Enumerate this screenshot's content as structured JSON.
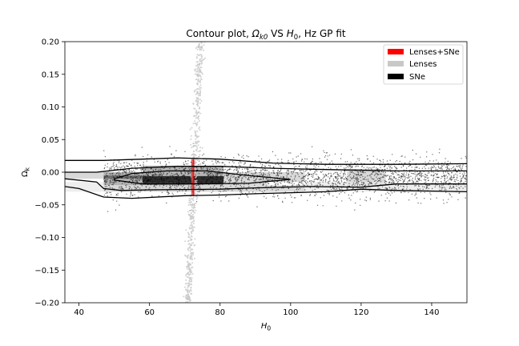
{
  "chart_data": {
    "type": "scatter",
    "title": {
      "pre": "Contour plot, ",
      "omega": "Ω",
      "omega_sub": "k0",
      "mid": " VS ",
      "h": "H",
      "h_sub": "0",
      "post": ", Hz GP fit"
    },
    "xlabel": {
      "main": "H",
      "sub": "0"
    },
    "ylabel": {
      "main": "Ω",
      "sub": "k"
    },
    "xlim": [
      36,
      150
    ],
    "ylim": [
      -0.2,
      0.2
    ],
    "xticks": [
      40,
      60,
      80,
      100,
      120,
      140
    ],
    "xtick_labels": [
      "40",
      "60",
      "80",
      "100",
      "120",
      "140"
    ],
    "yticks": [
      0.2,
      0.15,
      0.1,
      0.05,
      0.0,
      -0.05,
      -0.1,
      -0.15,
      -0.2
    ],
    "ytick_labels": [
      "0.20",
      "0.15",
      "0.10",
      "0.05",
      "0.00",
      "−0.05",
      "−0.10",
      "−0.15",
      "−0.20"
    ],
    "legend_position": "top-right",
    "series": [
      {
        "name": "Lenses+SNe",
        "color": "#ff0000"
      },
      {
        "name": "Lenses",
        "color": "#c8c8c8"
      },
      {
        "name": "SNe",
        "color": "#000000"
      }
    ],
    "sne_band": {
      "center": -0.008,
      "sigma": 0.015,
      "x_start": 47
    },
    "contours": {
      "outer": {
        "upper": [
          [
            36,
            0.018
          ],
          [
            47,
            0.018
          ],
          [
            58,
            0.02
          ],
          [
            68,
            0.022
          ],
          [
            80,
            0.02
          ],
          [
            95,
            0.014
          ],
          [
            110,
            0.012
          ],
          [
            130,
            0.012
          ],
          [
            150,
            0.013
          ]
        ],
        "lower": [
          [
            150,
            -0.03
          ],
          [
            130,
            -0.028
          ],
          [
            120,
            -0.026
          ],
          [
            110,
            -0.03
          ],
          [
            90,
            -0.033
          ],
          [
            80,
            -0.035
          ],
          [
            70,
            -0.036
          ],
          [
            55,
            -0.04
          ],
          [
            47,
            -0.038
          ],
          [
            40,
            -0.025
          ],
          [
            36,
            -0.022
          ]
        ]
      },
      "middle": {
        "upper": [
          [
            36,
            0.0
          ],
          [
            45,
            0.0
          ],
          [
            55,
            0.006
          ],
          [
            68,
            0.009
          ],
          [
            80,
            0.009
          ],
          [
            95,
            0.006
          ],
          [
            110,
            0.004
          ],
          [
            130,
            0.002
          ],
          [
            150,
            0.002
          ]
        ],
        "lower": [
          [
            150,
            -0.018
          ],
          [
            130,
            -0.018
          ],
          [
            120,
            -0.023
          ],
          [
            105,
            -0.022
          ],
          [
            90,
            -0.024
          ],
          [
            80,
            -0.026
          ],
          [
            60,
            -0.027
          ],
          [
            52,
            -0.028
          ],
          [
            47,
            -0.025
          ],
          [
            45,
            -0.015
          ],
          [
            36,
            -0.01
          ]
        ]
      },
      "inner": [
        [
          50,
          -0.01
        ],
        [
          55,
          -0.002
        ],
        [
          65,
          0.002
        ],
        [
          76,
          0.002
        ],
        [
          88,
          -0.005
        ],
        [
          100,
          -0.011
        ],
        [
          88,
          -0.017
        ],
        [
          70,
          -0.018
        ],
        [
          58,
          -0.018
        ],
        [
          50,
          -0.012
        ]
      ]
    },
    "shaded_cells": [
      {
        "x": [
          36,
          47
        ],
        "y": [
          -0.01,
          0.0
        ],
        "level": 2
      },
      {
        "x": [
          47,
          58
        ],
        "y": [
          -0.02,
          0.0
        ],
        "level": 3
      },
      {
        "x": [
          58,
          70
        ],
        "y": [
          -0.02,
          0.01
        ],
        "level": 3
      },
      {
        "x": [
          70,
          81
        ],
        "y": [
          -0.02,
          0.01
        ],
        "level": 3
      },
      {
        "x": [
          81,
          93
        ],
        "y": [
          -0.02,
          0.0
        ],
        "level": 2
      },
      {
        "x": [
          93,
          104
        ],
        "y": [
          -0.015,
          0.0
        ],
        "level": 2
      },
      {
        "x": [
          116,
          127
        ],
        "y": [
          -0.02,
          0.005
        ],
        "level": 2
      },
      {
        "x": [
          104,
          150
        ],
        "y": [
          -0.03,
          -0.015
        ],
        "level": 1
      },
      {
        "x": [
          47,
          104
        ],
        "y": [
          -0.03,
          -0.02
        ],
        "level": 2
      },
      {
        "x": [
          36,
          47
        ],
        "y": [
          -0.03,
          -0.015
        ],
        "level": 1
      },
      {
        "x": [
          58,
          81
        ],
        "y": [
          -0.017,
          -0.006
        ],
        "level": 5
      },
      {
        "x": [
          47,
          58
        ],
        "y": [
          -0.01,
          -0.005
        ],
        "level": 4
      }
    ],
    "lenses_band": {
      "bottom": [
        70.8,
        -0.2
      ],
      "top": [
        74.5,
        0.2
      ],
      "width": 1.6
    },
    "overlap_strip": {
      "x": [
        71.8,
        72.8
      ],
      "y": [
        -0.035,
        0.02
      ]
    }
  }
}
